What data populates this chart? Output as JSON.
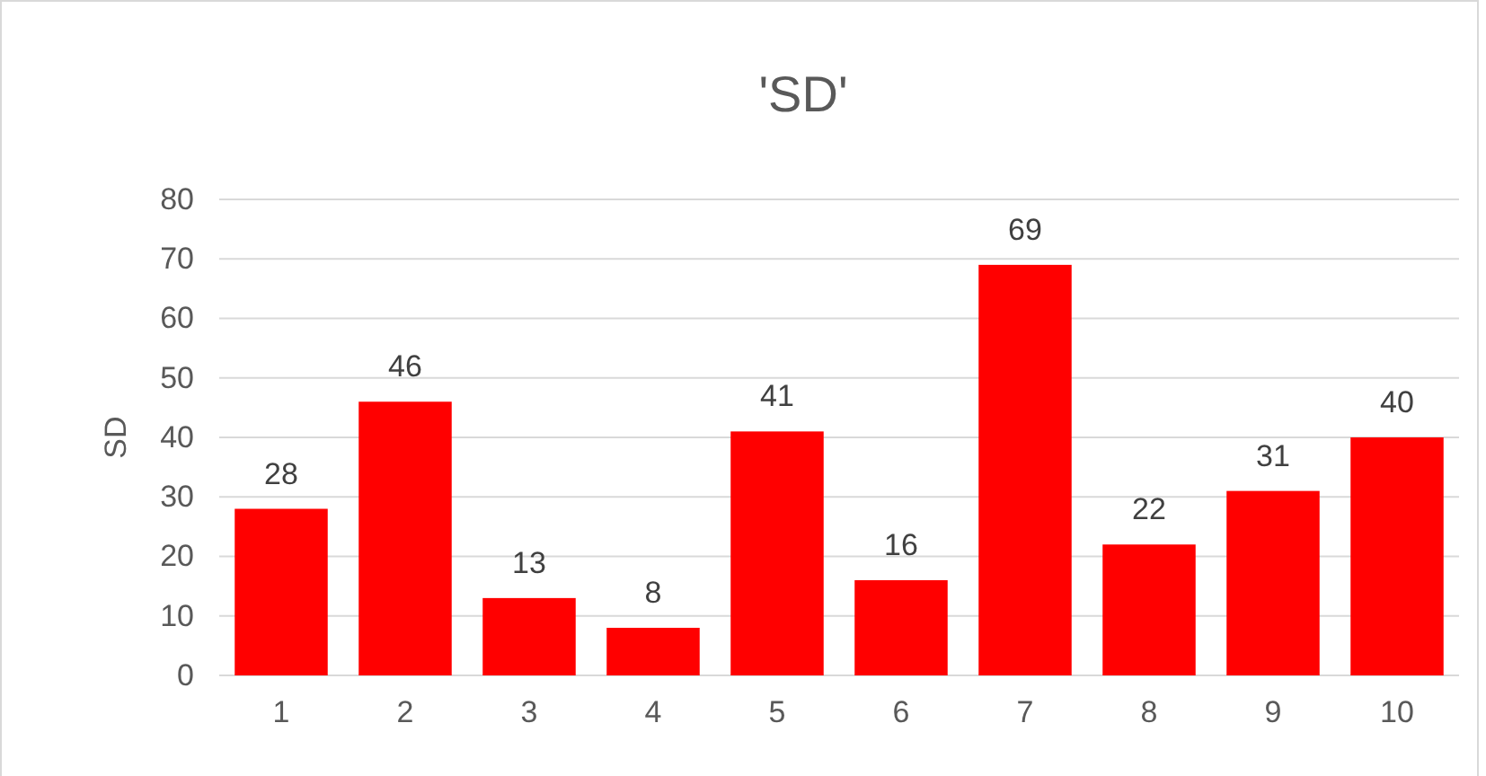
{
  "chart_data": {
    "type": "bar",
    "title": "'SD'",
    "ylabel": "SD",
    "categories": [
      "1",
      "2",
      "3",
      "4",
      "5",
      "6",
      "7",
      "8",
      "9",
      "10"
    ],
    "values": [
      28,
      46,
      13,
      8,
      41,
      16,
      69,
      22,
      31,
      40
    ],
    "color": "#ff0000",
    "ylim": [
      0,
      80
    ],
    "yticks": [
      0,
      10,
      20,
      30,
      40,
      50,
      60,
      70,
      80
    ],
    "grid": "y",
    "data_labels": true
  }
}
